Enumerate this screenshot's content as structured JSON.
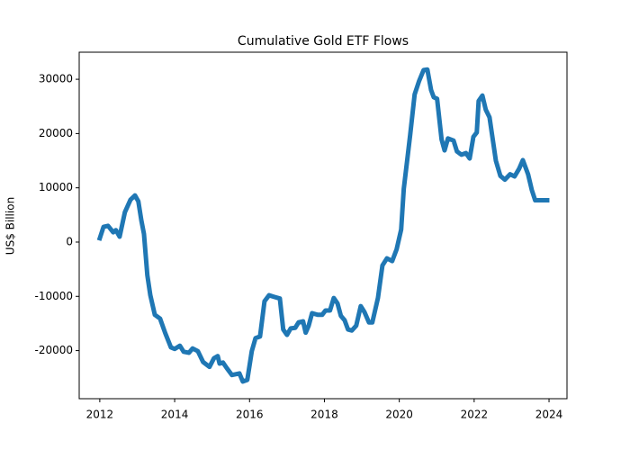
{
  "chart_data": {
    "type": "line",
    "title": "Cumulative Gold ETF Flows",
    "y_label": "US$ Billion",
    "x": [
      2012.0,
      2012.1,
      2012.22,
      2012.36,
      2012.43,
      2012.53,
      2012.67,
      2012.82,
      2012.94,
      2013.03,
      2013.11,
      2013.18,
      2013.27,
      2013.35,
      2013.47,
      2013.61,
      2013.75,
      2013.9,
      2014.0,
      2014.14,
      2014.24,
      2014.38,
      2014.48,
      2014.62,
      2014.76,
      2014.93,
      2015.05,
      2015.15,
      2015.2,
      2015.29,
      2015.39,
      2015.53,
      2015.73,
      2015.82,
      2015.94,
      2016.06,
      2016.16,
      2016.28,
      2016.4,
      2016.52,
      2016.66,
      2016.81,
      2016.9,
      2017.0,
      2017.1,
      2017.22,
      2017.31,
      2017.43,
      2017.5,
      2017.58,
      2017.67,
      2017.82,
      2017.94,
      2018.03,
      2018.15,
      2018.25,
      2018.35,
      2018.44,
      2018.54,
      2018.63,
      2018.73,
      2018.85,
      2018.97,
      2019.07,
      2019.19,
      2019.28,
      2019.43,
      2019.55,
      2019.67,
      2019.81,
      2019.93,
      2020.05,
      2020.12,
      2020.22,
      2020.29,
      2020.41,
      2020.53,
      2020.65,
      2020.75,
      2020.85,
      2020.92,
      2021.01,
      2021.13,
      2021.21,
      2021.3,
      2021.45,
      2021.54,
      2021.66,
      2021.78,
      2021.88,
      2021.98,
      2022.07,
      2022.12,
      2022.22,
      2022.31,
      2022.41,
      2022.48,
      2022.58,
      2022.7,
      2022.82,
      2022.96,
      2023.08,
      2023.2,
      2023.3,
      2023.44,
      2023.54,
      2023.63,
      2023.75,
      2023.95
    ],
    "series": [
      {
        "name": "Cumulative Gold ETF Flows",
        "color": "#1f77b4",
        "values": [
          700,
          2800,
          3000,
          1800,
          2200,
          1000,
          5500,
          7800,
          8600,
          7500,
          4000,
          1500,
          -6100,
          -9800,
          -13400,
          -14100,
          -16800,
          -19400,
          -19700,
          -19100,
          -20200,
          -20400,
          -19600,
          -20100,
          -22100,
          -23000,
          -21400,
          -21000,
          -22400,
          -22200,
          -23200,
          -24500,
          -24200,
          -25700,
          -25400,
          -20100,
          -17700,
          -17400,
          -10900,
          -9800,
          -10100,
          -10400,
          -16100,
          -17100,
          -15900,
          -15800,
          -14800,
          -14600,
          -16700,
          -15400,
          -13100,
          -13400,
          -13400,
          -12600,
          -12600,
          -10300,
          -11300,
          -13600,
          -14400,
          -16100,
          -16300,
          -15400,
          -11800,
          -12900,
          -14800,
          -14800,
          -10300,
          -4300,
          -3000,
          -3500,
          -1300,
          2300,
          9800,
          15600,
          19700,
          27200,
          29700,
          31700,
          31800,
          28000,
          26700,
          26400,
          18900,
          16900,
          19100,
          18700,
          16700,
          16100,
          16400,
          15400,
          19400,
          20200,
          26000,
          27000,
          24400,
          23000,
          19700,
          15000,
          12200,
          11500,
          12500,
          12100,
          13500,
          15100,
          12500,
          9600,
          7700,
          7700,
          7700
        ]
      }
    ],
    "xlim": [
      2011.45,
      2024.48
    ],
    "xticks": [
      2012,
      2014,
      2016,
      2018,
      2020,
      2022,
      2024
    ],
    "ylim": [
      -28860,
      34990
    ],
    "yticks": [
      -20000,
      -10000,
      0,
      10000,
      20000,
      30000
    ],
    "grid": false
  }
}
